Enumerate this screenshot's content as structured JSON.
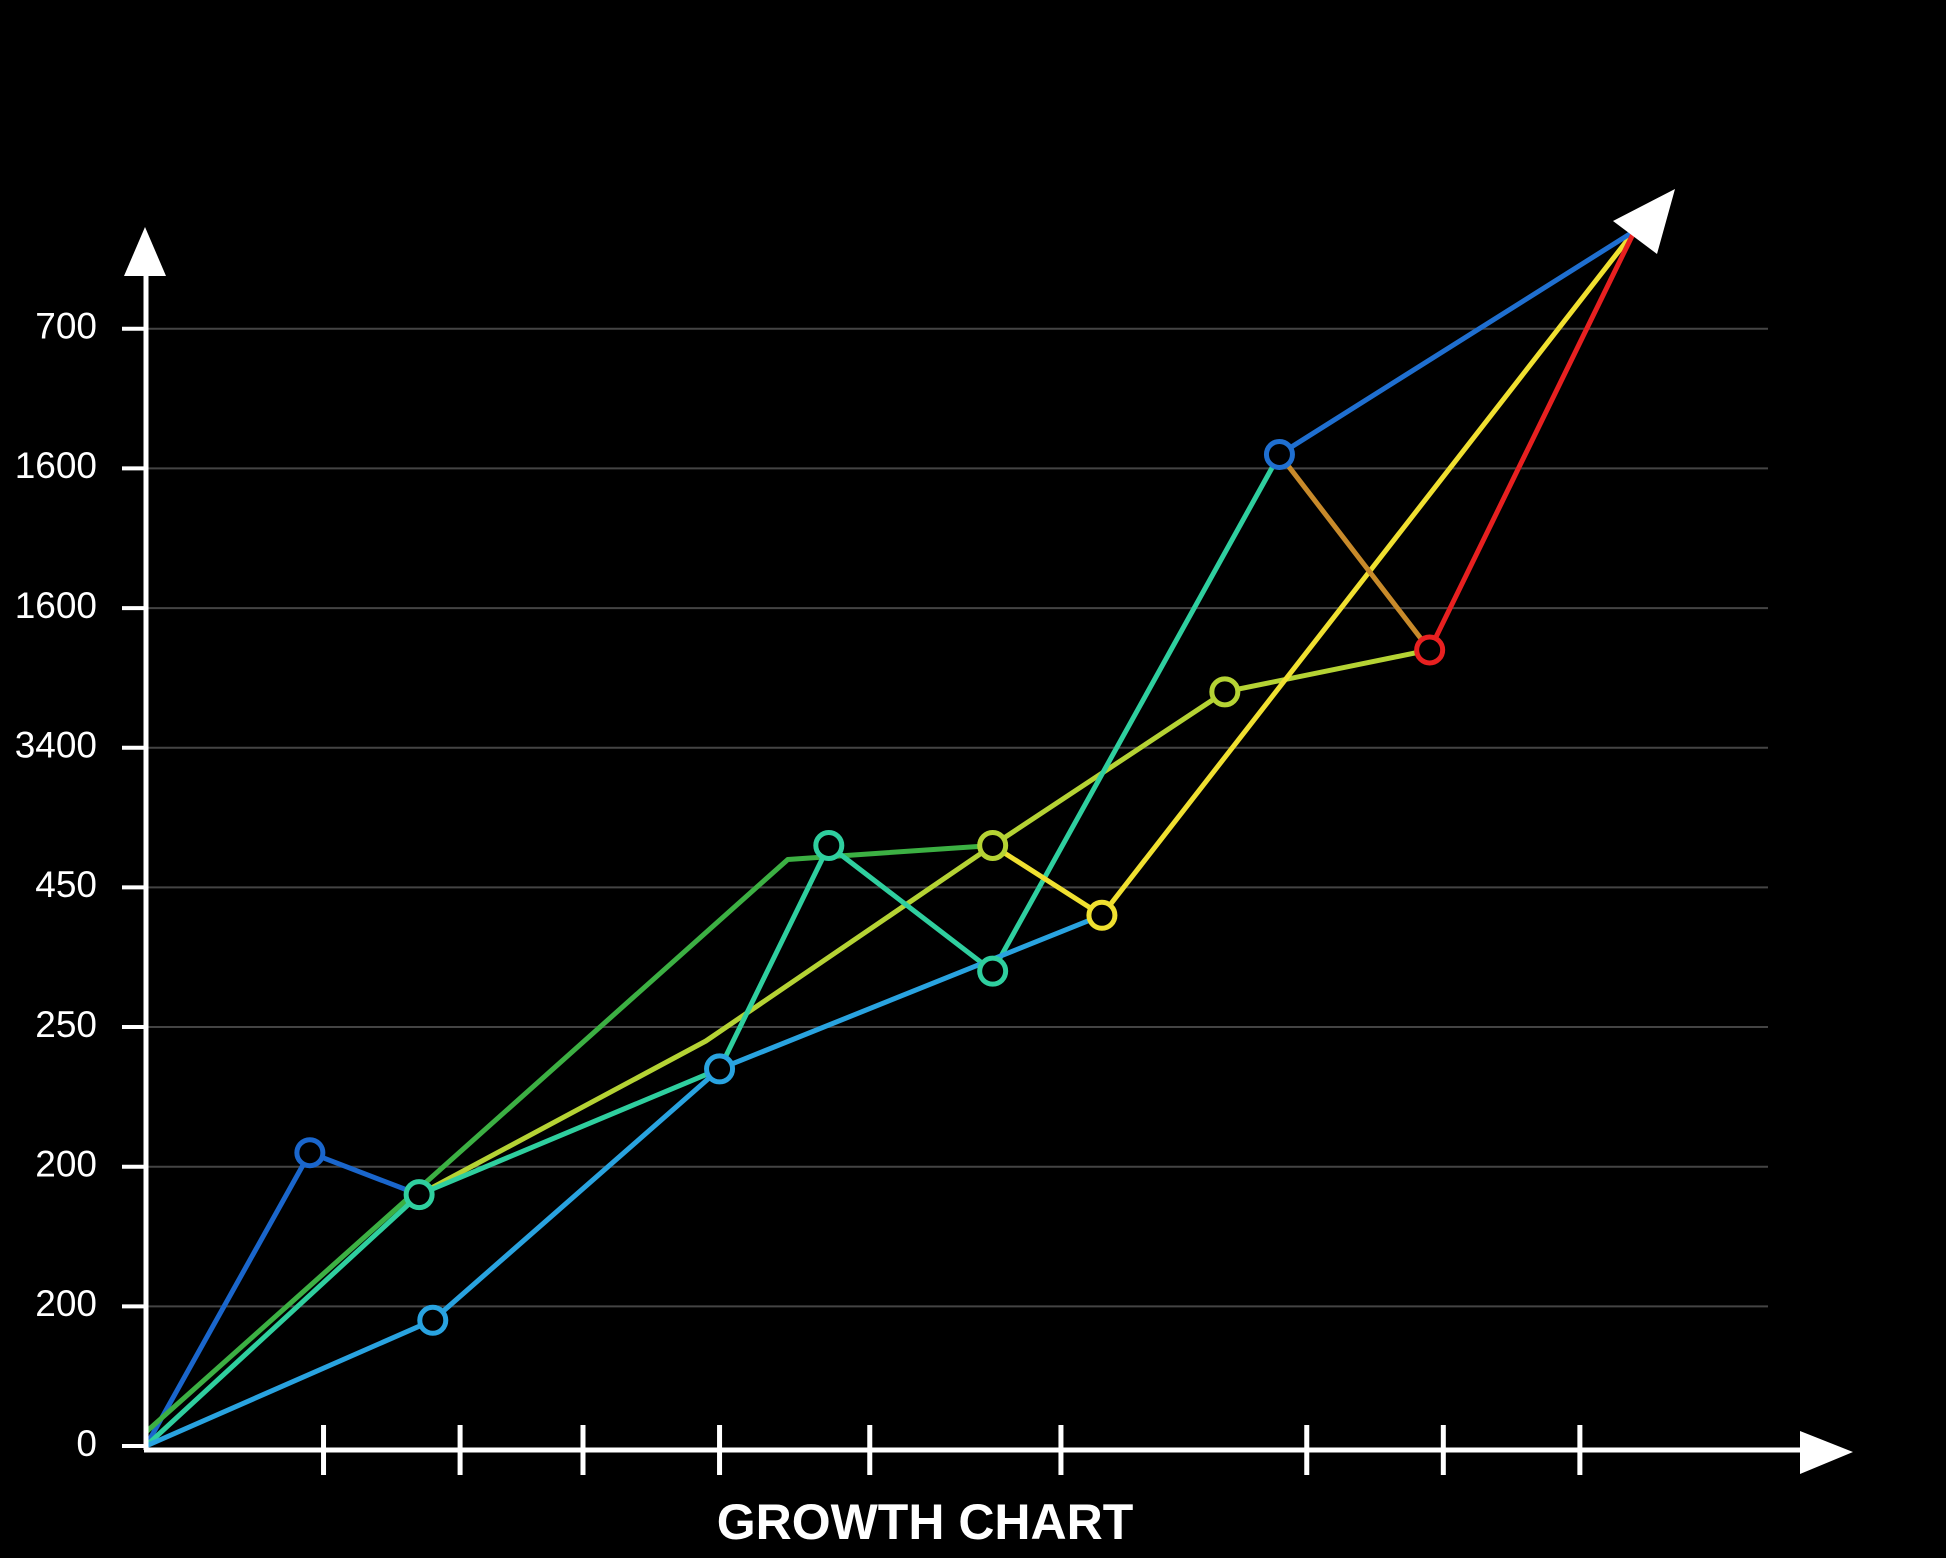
{
  "chart_data": {
    "type": "line",
    "title": "GROWTH CHART",
    "xlim": [
      0,
      12.5
    ],
    "ylim": [
      0,
      8.7
    ],
    "xticks": [
      1.3,
      2.3,
      3.2,
      4.2,
      5.3,
      6.7,
      8.5,
      9.5,
      10.5
    ],
    "yticks": [
      0,
      {
        "value": 1,
        "label": "200"
      },
      {
        "value": 2,
        "label": "200"
      },
      {
        "value": 3,
        "label": "250"
      },
      {
        "value": 4,
        "label": "450"
      },
      {
        "value": 5,
        "label": "3400"
      },
      {
        "value": 6,
        "label": "1600"
      },
      {
        "value": 7,
        "label": "1600"
      },
      {
        "value": 8,
        "label": "700"
      }
    ],
    "grid": true,
    "series": [
      {
        "color": "#1a66cc",
        "x": [
          0,
          1.2,
          2.0
        ],
        "values": [
          0,
          2.1,
          1.8
        ],
        "markers": [
          false,
          true,
          false
        ]
      },
      {
        "color": "#3cb043",
        "x": [
          0,
          4.7,
          6.2
        ],
        "values": [
          0.1,
          4.2,
          4.3
        ],
        "markers": [
          false,
          false,
          false
        ]
      },
      {
        "color": "#b5d334",
        "x": [
          2.0,
          4.1,
          6.2,
          7.9,
          9.4
        ],
        "values": [
          1.8,
          2.9,
          4.3,
          5.4,
          5.7
        ],
        "markers": [
          false,
          false,
          true,
          true,
          false
        ]
      },
      {
        "color": "#2fcf9f",
        "x": [
          0,
          2.0,
          4.2,
          5.0,
          6.2,
          8.3
        ],
        "values": [
          0,
          1.8,
          2.7,
          4.3,
          3.4,
          7.1
        ],
        "markers": [
          false,
          true,
          false,
          true,
          true,
          false
        ]
      },
      {
        "color": "#29a3e0",
        "x": [
          0,
          2.1,
          4.2,
          7.0
        ],
        "values": [
          0,
          0.9,
          2.7,
          3.8
        ],
        "markers": [
          false,
          true,
          true,
          false
        ]
      },
      {
        "color": "#f0e030",
        "x": [
          6.2,
          7.0,
          10.9
        ],
        "values": [
          4.3,
          3.8,
          8.7
        ],
        "markers": [
          false,
          true,
          false
        ]
      },
      {
        "color": "#1f6fd0",
        "x": [
          8.3,
          10.9
        ],
        "values": [
          7.1,
          8.7
        ],
        "markers": [
          true,
          false
        ]
      },
      {
        "color": "#c88a2a",
        "x": [
          8.3,
          9.4
        ],
        "values": [
          7.1,
          5.7
        ],
        "markers": [
          false,
          false
        ]
      },
      {
        "color": "#e82020",
        "x": [
          9.4,
          10.9
        ],
        "values": [
          5.7,
          8.7
        ],
        "markers": [
          true,
          false
        ]
      }
    ]
  }
}
